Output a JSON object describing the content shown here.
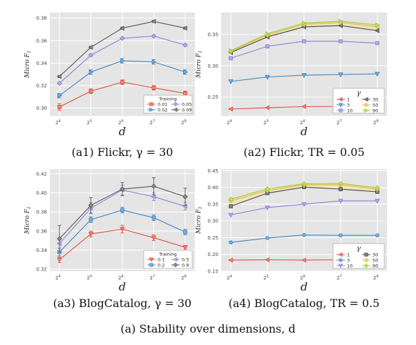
{
  "figure_caption": "(a) Stability over dimensions, d",
  "chart_data": [
    {
      "type": "line",
      "caption": "(a1) Flickr, γ = 30",
      "xlabel": "d",
      "ylabel": "Micro F1",
      "x": [
        16,
        32,
        64,
        128,
        256
      ],
      "xtick_labels": [
        "2^4",
        "2^5",
        "2^6",
        "2^7",
        "2^8"
      ],
      "yticks": [
        0.3,
        0.32,
        0.34,
        0.36,
        0.38
      ],
      "ylim": [
        0.293,
        0.385
      ],
      "legend_title": "Training",
      "legend_position": "bottom-right",
      "legend_cols": 2,
      "series": [
        {
          "name": "0.01",
          "color": "#e14a3b",
          "marker": "square",
          "values": [
            0.301,
            0.315,
            0.323,
            0.318,
            0.313
          ],
          "err": [
            0.003,
            0.002,
            0.002,
            0.002,
            0.002
          ]
        },
        {
          "name": "0.02",
          "color": "#3a84c2",
          "marker": "tri-right",
          "values": [
            0.311,
            0.332,
            0.342,
            0.341,
            0.332
          ],
          "err": [
            0.002,
            0.002,
            0.002,
            0.002,
            0.002
          ]
        },
        {
          "name": "0.05",
          "color": "#8b7fd6",
          "marker": "diamond",
          "values": [
            0.322,
            0.347,
            0.362,
            0.364,
            0.356
          ],
          "err": [
            0.001,
            0.001,
            0.001,
            0.001,
            0.001
          ]
        },
        {
          "name": "0.09",
          "color": "#555555",
          "marker": "tri-left",
          "values": [
            0.328,
            0.354,
            0.371,
            0.377,
            0.371
          ],
          "err": [
            0.001,
            0.001,
            0.001,
            0.001,
            0.001
          ]
        }
      ]
    },
    {
      "type": "line",
      "caption": "(a2) Flickr, TR = 0.05",
      "xlabel": "d",
      "ylabel": "Micro F1",
      "x": [
        16,
        32,
        64,
        128,
        256
      ],
      "xtick_labels": [
        "2^4",
        "2^5",
        "2^6",
        "2^7",
        "2^8"
      ],
      "yticks": [
        0.25,
        0.3,
        0.35
      ],
      "ylim": [
        0.22,
        0.385
      ],
      "legend_title": "γ",
      "legend_position": "bottom-right",
      "legend_cols": 2,
      "series": [
        {
          "name": "1",
          "color": "#e14a3b",
          "marker": "tri-left",
          "values": [
            0.231,
            0.233,
            0.235,
            0.235,
            0.236
          ],
          "err": [
            0.0,
            0.0,
            0.0,
            0.0,
            0.0
          ]
        },
        {
          "name": "3",
          "color": "#3a84c2",
          "marker": "tri-down",
          "values": [
            0.275,
            0.282,
            0.285,
            0.286,
            0.287
          ],
          "err": [
            0.0,
            0.0,
            0.0,
            0.0,
            0.0
          ]
        },
        {
          "name": "10",
          "color": "#8b7fd6",
          "marker": "square",
          "values": [
            0.312,
            0.331,
            0.339,
            0.339,
            0.336
          ],
          "err": [
            0.0,
            0.0,
            0.0,
            0.0,
            0.0
          ]
        },
        {
          "name": "30",
          "color": "#444444",
          "marker": "tri-left",
          "values": [
            0.321,
            0.346,
            0.362,
            0.364,
            0.356
          ],
          "err": [
            0.0,
            0.0,
            0.0,
            0.0,
            0.0
          ]
        },
        {
          "name": "50",
          "color": "#e6b43c",
          "marker": "diamond",
          "values": [
            0.323,
            0.349,
            0.366,
            0.369,
            0.362
          ],
          "err": [
            0.0,
            0.0,
            0.0,
            0.0,
            0.0
          ]
        },
        {
          "name": "90",
          "color": "#9acd32",
          "marker": "tri-right",
          "values": [
            0.324,
            0.351,
            0.368,
            0.371,
            0.365
          ],
          "err": [
            0.0,
            0.0,
            0.0,
            0.0,
            0.0
          ]
        }
      ]
    },
    {
      "type": "line",
      "caption": "(a3) BlogCatalog, γ = 30",
      "xlabel": "d",
      "ylabel": "Micro F1",
      "x": [
        16,
        32,
        64,
        128,
        256
      ],
      "xtick_labels": [
        "2^4",
        "2^5",
        "2^6",
        "2^7",
        "2^8"
      ],
      "yticks": [
        0.32,
        0.34,
        0.36,
        0.38,
        0.4,
        0.42
      ],
      "ylim": [
        0.318,
        0.425
      ],
      "legend_title": "Training",
      "legend_position": "bottom-right",
      "legend_cols": 2,
      "series": [
        {
          "name": "0.1",
          "color": "#e14a3b",
          "marker": "tri-down",
          "values": [
            0.33,
            0.357,
            0.362,
            0.353,
            0.343
          ],
          "err": [
            0.003,
            0.003,
            0.004,
            0.003,
            0.002
          ]
        },
        {
          "name": "0.2",
          "color": "#3a84c2",
          "marker": "square",
          "values": [
            0.338,
            0.372,
            0.382,
            0.374,
            0.359
          ],
          "err": [
            0.004,
            0.003,
            0.003,
            0.003,
            0.003
          ]
        },
        {
          "name": "0.5",
          "color": "#8b7fd6",
          "marker": "tri-left",
          "values": [
            0.347,
            0.384,
            0.403,
            0.396,
            0.386
          ],
          "err": [
            0.005,
            0.006,
            0.005,
            0.004,
            0.004
          ]
        },
        {
          "name": "0.9",
          "color": "#555555",
          "marker": "diamond",
          "values": [
            0.352,
            0.387,
            0.404,
            0.407,
            0.396
          ],
          "err": [
            0.014,
            0.008,
            0.007,
            0.009,
            0.009
          ]
        }
      ]
    },
    {
      "type": "line",
      "caption": "(a4) BlogCatalog, TR = 0.5",
      "xlabel": "d",
      "ylabel": "Micro F1",
      "x": [
        16,
        32,
        64,
        128,
        256
      ],
      "xtick_labels": [
        "2^4",
        "2^5",
        "2^6",
        "2^7",
        "2^8"
      ],
      "yticks": [
        0.15,
        0.2,
        0.25,
        0.3,
        0.35,
        0.4,
        0.45
      ],
      "ylim": [
        0.15,
        0.455
      ],
      "legend_title": "γ",
      "legend_position": "bottom-right",
      "legend_cols": 2,
      "series": [
        {
          "name": "1",
          "color": "#e14a3b",
          "marker": "tri-left",
          "values": [
            0.183,
            0.184,
            0.183,
            0.184,
            0.185
          ],
          "err": [
            0.0,
            0.0,
            0.0,
            0.0,
            0.0
          ]
        },
        {
          "name": "3",
          "color": "#3a84c2",
          "marker": "circle",
          "values": [
            0.236,
            0.249,
            0.258,
            0.257,
            0.257
          ],
          "err": [
            0.0,
            0.0,
            0.0,
            0.0,
            0.0
          ]
        },
        {
          "name": "10",
          "color": "#8b7fd6",
          "marker": "tri-down",
          "values": [
            0.318,
            0.34,
            0.35,
            0.36,
            0.36
          ],
          "err": [
            0.0,
            0.0,
            0.0,
            0.0,
            0.0
          ]
        },
        {
          "name": "30",
          "color": "#444444",
          "marker": "square",
          "values": [
            0.344,
            0.383,
            0.401,
            0.395,
            0.387
          ],
          "err": [
            0.0,
            0.0,
            0.0,
            0.0,
            0.0
          ]
        },
        {
          "name": "50",
          "color": "#e6b43c",
          "marker": "diamond",
          "values": [
            0.36,
            0.391,
            0.408,
            0.408,
            0.395
          ],
          "err": [
            0.0,
            0.0,
            0.0,
            0.0,
            0.0
          ]
        },
        {
          "name": "90",
          "color": "#9acd32",
          "marker": "diamond",
          "values": [
            0.365,
            0.396,
            0.411,
            0.412,
            0.399
          ],
          "err": [
            0.0,
            0.0,
            0.0,
            0.0,
            0.0
          ]
        }
      ]
    }
  ]
}
